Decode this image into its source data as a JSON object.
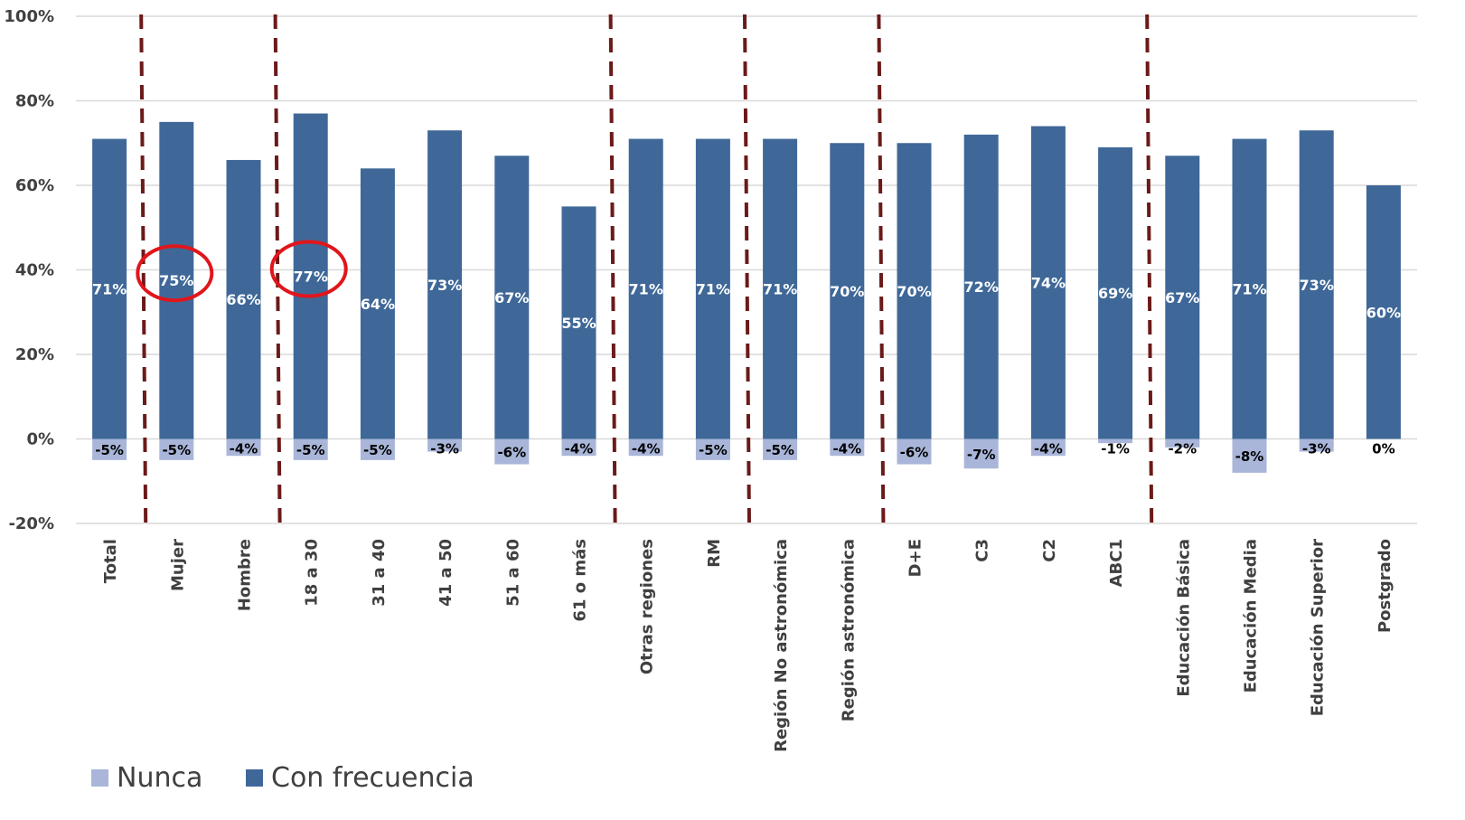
{
  "chart_data": {
    "type": "bar",
    "stacked": true,
    "categories": [
      "Total",
      "Mujer",
      "Hombre",
      "18 a 30",
      "31 a 40",
      "41 a 50",
      "51 a 60",
      "61 o más",
      "Otras regiones",
      "RM",
      "Región No astronómica",
      "Región astronómica",
      "D+E",
      "C3",
      "C2",
      "ABC1",
      "Educación Básica",
      "Educación Media",
      "Educación Superior",
      "Postgrado"
    ],
    "series": [
      {
        "name": "Nunca",
        "color": "#A9B6D9",
        "values": [
          -5,
          -5,
          -4,
          -5,
          -5,
          -3,
          -6,
          -4,
          -4,
          -5,
          -5,
          -4,
          -6,
          -7,
          -4,
          -1,
          -2,
          -8,
          -3,
          0
        ],
        "labels": [
          "-5%",
          "-5%",
          "-4%",
          "-5%",
          "-5%",
          "-3%",
          "-6%",
          "-4%",
          "-4%",
          "-5%",
          "-5%",
          "-4%",
          "-6%",
          "-7%",
          "-4%",
          "-1%",
          "-2%",
          "-8%",
          "-3%",
          "0%"
        ]
      },
      {
        "name": "Con frecuencia",
        "color": "#3F6898",
        "values": [
          71,
          75,
          66,
          77,
          64,
          73,
          67,
          55,
          71,
          71,
          71,
          70,
          70,
          72,
          74,
          69,
          67,
          71,
          73,
          60
        ],
        "labels": [
          "71%",
          "75%",
          "66%",
          "77%",
          "64%",
          "73%",
          "67%",
          "55%",
          "71%",
          "71%",
          "71%",
          "70%",
          "70%",
          "72%",
          "74%",
          "69%",
          "67%",
          "71%",
          "73%",
          "60%"
        ]
      }
    ],
    "ylim": [
      -20,
      100
    ],
    "yticks": [
      "-20%",
      "0%",
      "20%",
      "40%",
      "60%",
      "80%",
      "100%"
    ],
    "ytick_values": [
      -20,
      0,
      20,
      40,
      60,
      80,
      100
    ],
    "grid": true,
    "legend_position": "bottom-left",
    "group_separators_after_index": [
      0,
      2,
      7,
      9,
      11,
      15
    ],
    "separator_color": "#6B1A1A",
    "highlighted_categories": [
      "Mujer",
      "18 a 30"
    ],
    "highlight_color": "#E0161B"
  }
}
